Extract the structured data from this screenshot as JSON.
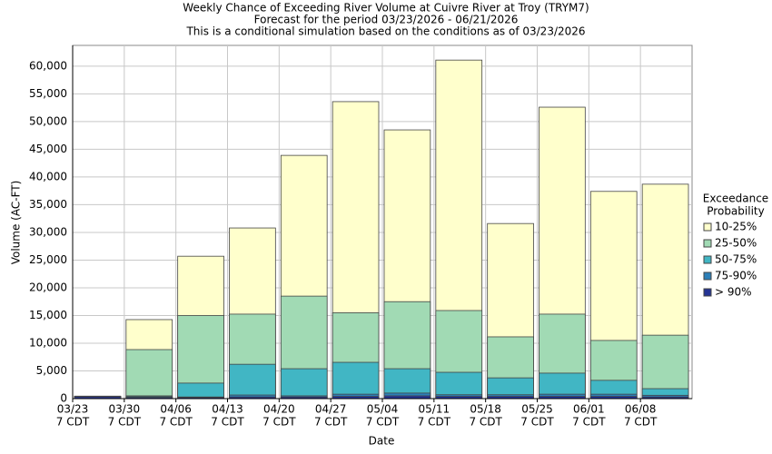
{
  "chart_data": {
    "type": "bar",
    "layout": "overlap",
    "title": "Weekly Chance of Exceeding River Volume at Cuivre River at Troy (TRYM7)",
    "subtitles": [
      "Forecast for the period 03/23/2026 - 06/21/2026",
      "This is a conditional simulation based on the conditions as of 03/23/2026"
    ],
    "x_label": "Date",
    "y_label": "Volume (AC-FT)",
    "legend_title": [
      "Exceedance",
      "Probability"
    ],
    "categories": [
      [
        "03/23",
        "7 CDT"
      ],
      [
        "03/30",
        "7 CDT"
      ],
      [
        "04/06",
        "7 CDT"
      ],
      [
        "04/13",
        "7 CDT"
      ],
      [
        "04/20",
        "7 CDT"
      ],
      [
        "04/27",
        "7 CDT"
      ],
      [
        "05/04",
        "7 CDT"
      ],
      [
        "05/11",
        "7 CDT"
      ],
      [
        "05/18",
        "7 CDT"
      ],
      [
        "05/25",
        "7 CDT"
      ],
      [
        "06/01",
        "7 CDT"
      ],
      [
        "06/08",
        "7 CDT"
      ]
    ],
    "series": [
      {
        "name": "10-25%",
        "color": "#ffffcc",
        "values": [
          450,
          14260,
          25700,
          30800,
          43900,
          53600,
          48500,
          61100,
          31600,
          52600,
          37400,
          38700
        ]
      },
      {
        "name": "25-50%",
        "color": "#a1dab4",
        "values": [
          420,
          8850,
          15000,
          15250,
          18500,
          15500,
          17500,
          15900,
          11150,
          15250,
          10500,
          11450
        ]
      },
      {
        "name": "50-75%",
        "color": "#41b6c4",
        "values": [
          390,
          500,
          2800,
          6200,
          5400,
          6550,
          5400,
          4750,
          3750,
          4600,
          3300,
          1800
        ]
      },
      {
        "name": "75-90%",
        "color": "#2c7fb8",
        "values": [
          360,
          350,
          300,
          650,
          500,
          800,
          1000,
          700,
          700,
          800,
          800,
          600
        ]
      },
      {
        "name": "> 90%",
        "color": "#253494",
        "values": [
          330,
          200,
          200,
          300,
          300,
          400,
          500,
          400,
          400,
          400,
          400,
          300
        ]
      }
    ],
    "ylim": [
      0,
      63750
    ],
    "yticks": [
      0,
      {
        "value": 5000,
        "label": "5,000"
      },
      {
        "value": 10000,
        "label": "10,000"
      },
      {
        "value": 15000,
        "label": "15,000"
      },
      {
        "value": 20000,
        "label": "20,000"
      },
      {
        "value": 25000,
        "label": "25,000"
      },
      {
        "value": 30000,
        "label": "30,000"
      },
      {
        "value": 35000,
        "label": "35,000"
      },
      {
        "value": 40000,
        "label": "40,000"
      },
      {
        "value": 45000,
        "label": "45,000"
      },
      {
        "value": 50000,
        "label": "50,000"
      },
      {
        "value": 55000,
        "label": "55,000"
      },
      {
        "value": 60000,
        "label": "60,000"
      }
    ],
    "grid": true
  }
}
